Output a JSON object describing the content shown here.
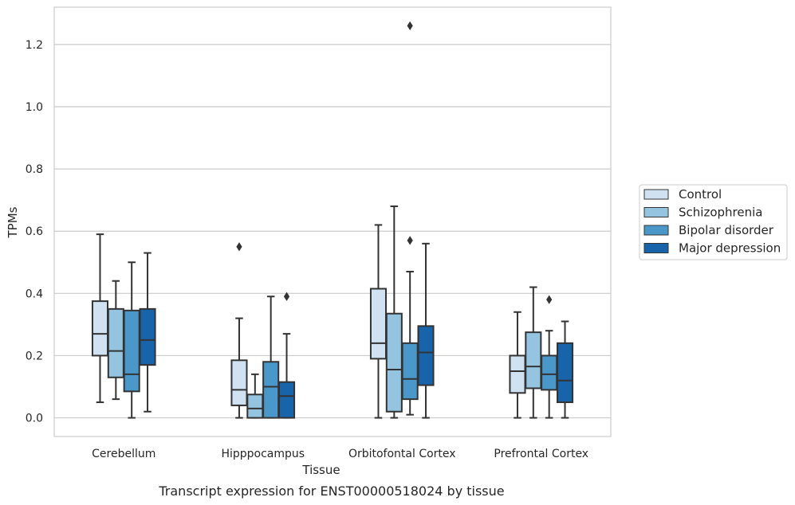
{
  "caption": "Transcript expression for ENST00000518024 by tissue",
  "chart_data": {
    "type": "boxplot",
    "xlabel": "Tissue",
    "ylabel": "TPMs",
    "ylim": [
      -0.06,
      1.32
    ],
    "yticks": [
      0.0,
      0.2,
      0.4,
      0.6,
      0.8,
      1.0,
      1.2
    ],
    "ytick_labels": [
      "0.0",
      "0.2",
      "0.4",
      "0.6",
      "0.8",
      "1.0",
      "1.2"
    ],
    "grid": "horizontal",
    "legend_position": "right",
    "categories": [
      "Cerebellum",
      "Hipppocampus",
      "Orbitofontal Cortex",
      "Prefrontal Cortex"
    ],
    "series": [
      {
        "name": "Control",
        "color": "#d0e1f2",
        "boxes": [
          {
            "whislo": 0.05,
            "q1": 0.2,
            "med": 0.27,
            "q3": 0.375,
            "whishi": 0.59,
            "fliers": []
          },
          {
            "whislo": 0.0,
            "q1": 0.04,
            "med": 0.09,
            "q3": 0.185,
            "whishi": 0.32,
            "fliers": [
              0.55
            ]
          },
          {
            "whislo": 0.0,
            "q1": 0.19,
            "med": 0.24,
            "q3": 0.415,
            "whishi": 0.62,
            "fliers": []
          },
          {
            "whislo": 0.0,
            "q1": 0.08,
            "med": 0.15,
            "q3": 0.2,
            "whishi": 0.34,
            "fliers": []
          }
        ]
      },
      {
        "name": "Schizophrenia",
        "color": "#94c4df",
        "boxes": [
          {
            "whislo": 0.06,
            "q1": 0.13,
            "med": 0.215,
            "q3": 0.35,
            "whishi": 0.44,
            "fliers": []
          },
          {
            "whislo": 0.0,
            "q1": 0.0,
            "med": 0.03,
            "q3": 0.075,
            "whishi": 0.14,
            "fliers": []
          },
          {
            "whislo": 0.0,
            "q1": 0.02,
            "med": 0.155,
            "q3": 0.335,
            "whishi": 0.68,
            "fliers": []
          },
          {
            "whislo": 0.0,
            "q1": 0.095,
            "med": 0.165,
            "q3": 0.275,
            "whishi": 0.42,
            "fliers": []
          }
        ]
      },
      {
        "name": "Bipolar disorder",
        "color": "#4a98c9",
        "boxes": [
          {
            "whislo": 0.0,
            "q1": 0.085,
            "med": 0.14,
            "q3": 0.345,
            "whishi": 0.5,
            "fliers": []
          },
          {
            "whislo": 0.0,
            "q1": 0.0,
            "med": 0.1,
            "q3": 0.18,
            "whishi": 0.39,
            "fliers": []
          },
          {
            "whislo": 0.01,
            "q1": 0.06,
            "med": 0.125,
            "q3": 0.24,
            "whishi": 0.47,
            "fliers": [
              0.57,
              1.26
            ]
          },
          {
            "whislo": 0.0,
            "q1": 0.09,
            "med": 0.14,
            "q3": 0.2,
            "whishi": 0.28,
            "fliers": [
              0.38
            ]
          }
        ]
      },
      {
        "name": "Major depression",
        "color": "#1764ab",
        "boxes": [
          {
            "whislo": 0.02,
            "q1": 0.17,
            "med": 0.25,
            "q3": 0.35,
            "whishi": 0.53,
            "fliers": []
          },
          {
            "whislo": 0.0,
            "q1": 0.0,
            "med": 0.07,
            "q3": 0.115,
            "whishi": 0.27,
            "fliers": [
              0.39
            ]
          },
          {
            "whislo": 0.0,
            "q1": 0.105,
            "med": 0.21,
            "q3": 0.295,
            "whishi": 0.56,
            "fliers": []
          },
          {
            "whislo": 0.0,
            "q1": 0.05,
            "med": 0.12,
            "q3": 0.24,
            "whishi": 0.31,
            "fliers": []
          }
        ]
      }
    ]
  }
}
